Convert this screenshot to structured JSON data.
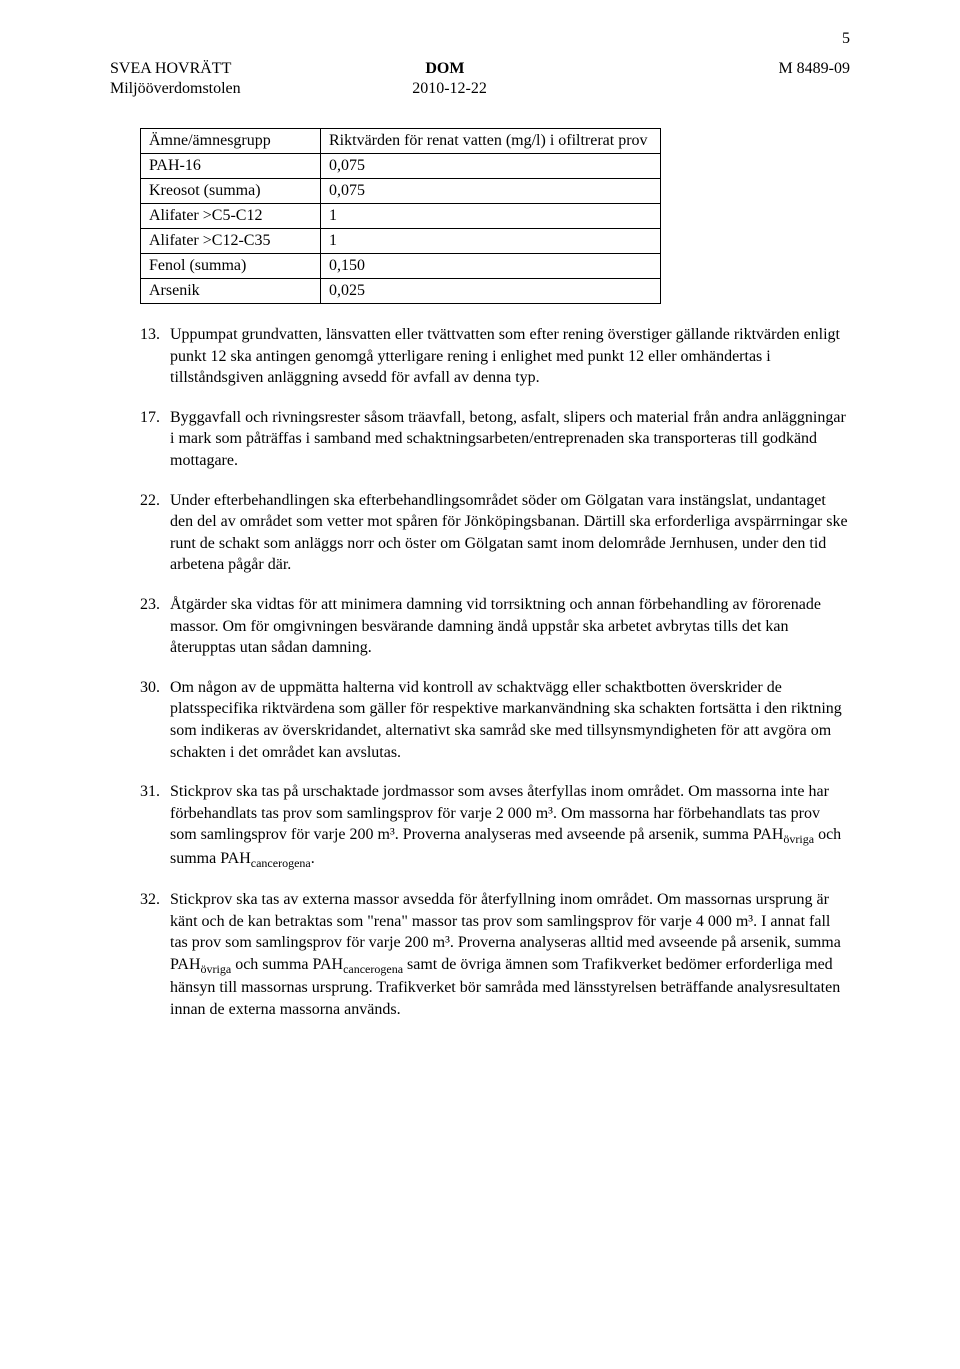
{
  "page_number_top": "5",
  "header": {
    "court": "SVEA HOVRÄTT",
    "division": "Miljööverdomstolen",
    "doc_type": "DOM",
    "date": "2010-12-22",
    "case_no": "M 8489-09"
  },
  "table": {
    "header": [
      "Ämne/ämnesgrupp",
      "Riktvärden för renat vatten (mg/l) i ofiltrerat prov"
    ],
    "rows": [
      [
        "PAH-16",
        "0,075"
      ],
      [
        "Kreosot (summa)",
        "0,075"
      ],
      [
        "Alifater >C5-C12",
        "1"
      ],
      [
        "Alifater >C12-C35",
        "1"
      ],
      [
        "Fenol (summa)",
        "0,150"
      ],
      [
        "Arsenik",
        "0,025"
      ]
    ]
  },
  "items": [
    {
      "n": "13.",
      "text": "Uppumpat grundvatten, länsvatten eller tvättvatten som efter rening överstiger gällande riktvärden enligt punkt 12 ska antingen genomgå ytterligare rening i enlighet med punkt 12 eller omhändertas i tillståndsgiven anläggning avsedd för avfall av denna typ."
    },
    {
      "n": "17.",
      "text": "Byggavfall och rivningsrester såsom träavfall, betong, asfalt, slipers och material från andra anläggningar i mark som påträffas i samband med schaktningsarbeten/entreprenaden ska transporteras till godkänd mottagare."
    },
    {
      "n": "22.",
      "text": "Under efterbehandlingen ska efterbehandlingsområdet söder om Gölgatan vara instängslat, undantaget den del av området som vetter mot spåren för Jönköpingsbanan. Därtill ska erforderliga avspärrningar ske runt de schakt som anläggs norr och öster om Gölgatan samt inom delområde Jernhusen, under den tid arbetena pågår där."
    },
    {
      "n": "23.",
      "text": "Åtgärder ska vidtas för att minimera damning vid torrsiktning och annan förbehandling av förorenade massor. Om för omgivningen besvärande damning ändå uppstår ska arbetet avbrytas tills det kan återupptas utan sådan damning."
    },
    {
      "n": "30.",
      "text": "Om någon av de uppmätta halterna vid kontroll av schaktvägg eller schaktbotten överskrider de platsspecifika riktvärdena som gäller för respektive markanvändning ska schakten fortsätta i den riktning som indikeras av överskridandet, alternativt ska samråd ske med tillsynsmyndigheten för att avgöra om schakten i det området kan avslutas."
    },
    {
      "n": "31.",
      "html": "Stickprov ska tas på urschaktade jordmassor som avses återfyllas inom området. Om massorna inte har förbehandlats tas prov som samlingsprov för varje 2 000 m³. Om massorna har förbehandlats tas prov som samlingsprov för varje 200 m³. Proverna analyseras med avseende på arsenik, summa PAH<span class=\"sub\">övriga</span> och summa PAH<span class=\"sub\">cancerogena</span>."
    },
    {
      "n": "32.",
      "html": "Stickprov ska tas av externa massor avsedda för återfyllning inom området. Om massornas ursprung är känt och de kan betraktas som \"rena\" massor tas prov som samlingsprov för varje 4 000 m³. I annat fall tas prov som samlingsprov för varje 200 m³. Proverna analyseras alltid med avseende på arsenik, summa PAH<span class=\"sub\">övriga</span> och summa PAH<span class=\"sub\">cancerogena</span> samt de övriga ämnen som Trafikverket bedömer erforderliga med hänsyn till massornas ursprung. Trafikverket bör samråda med länsstyrelsen beträffande analysresultaten innan de externa massorna används."
    }
  ]
}
